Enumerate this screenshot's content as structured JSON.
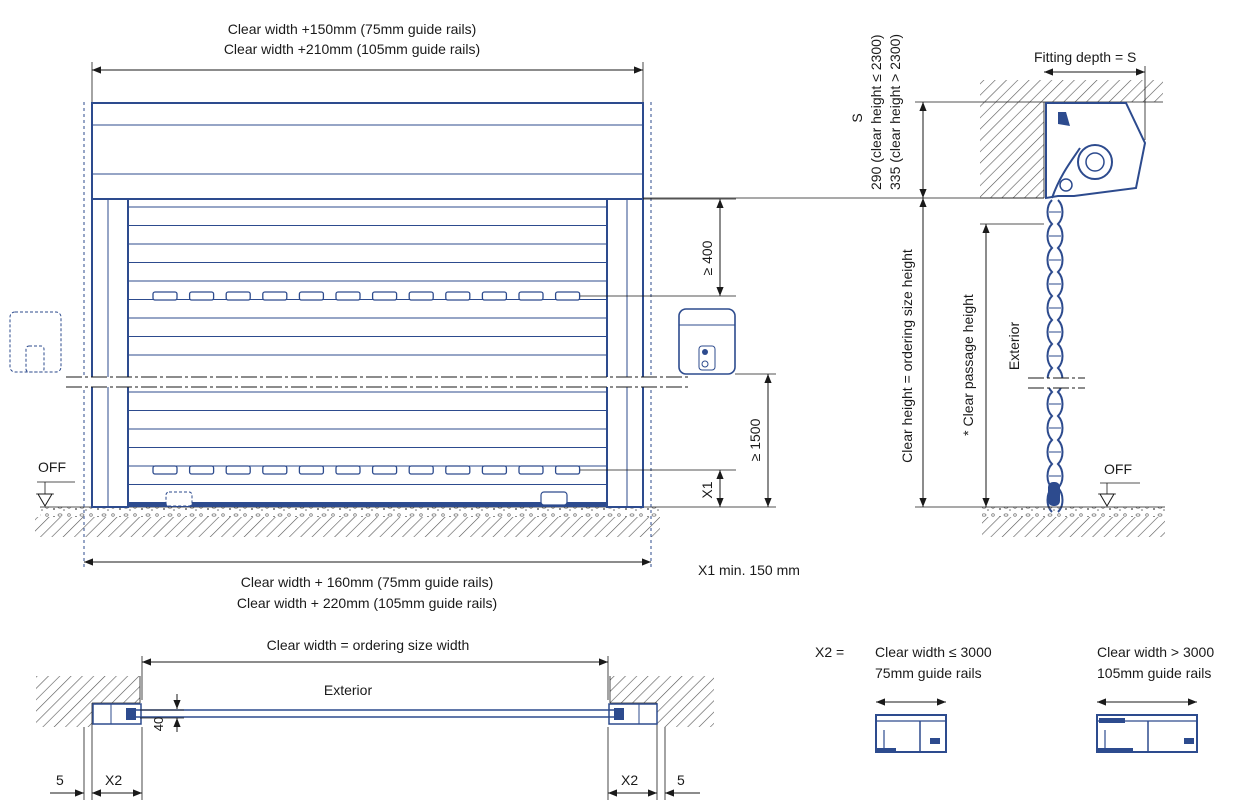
{
  "front_view": {
    "top_width_line1": "Clear width +150mm (75mm guide rails)",
    "top_width_line2": "Clear width +210mm (105mm guide rails)",
    "bottom_width_line1": "Clear width + 160mm (75mm guide rails)",
    "bottom_width_line2": "Clear width + 220mm (105mm guide rails)",
    "dim_400": "≥ 400",
    "dim_1500": "≥ 1500",
    "dim_x1": "X1",
    "x1_note": "X1 min. 150 mm",
    "off_label": "OFF"
  },
  "side_view": {
    "fitting_depth": "Fitting depth = S",
    "s_label": "S",
    "s_line1": "290 (clear height ≤ 2300)",
    "s_line2": "335 (clear height > 2300)",
    "clear_height": "Clear height = ordering size height",
    "passage_height": "* Clear passage height",
    "exterior": "Exterior",
    "off_label": "OFF"
  },
  "plan_view": {
    "clear_width": "Clear width = ordering size width",
    "exterior": "Exterior",
    "dim_40": "40",
    "dim_5_left": "5",
    "dim_x2_left": "X2",
    "dim_x2_right": "X2",
    "dim_5_right": "5"
  },
  "rail_options": {
    "x2_label": "X2 =",
    "option1_line1": "Clear width ≤ 3000",
    "option1_line2": "75mm guide rails",
    "option2_line1": "Clear width > 3000",
    "option2_line2": "105mm guide rails"
  },
  "colors": {
    "door_blue": "#2d4b8e",
    "ink": "#1a1a1a",
    "hatch": "#555555"
  }
}
